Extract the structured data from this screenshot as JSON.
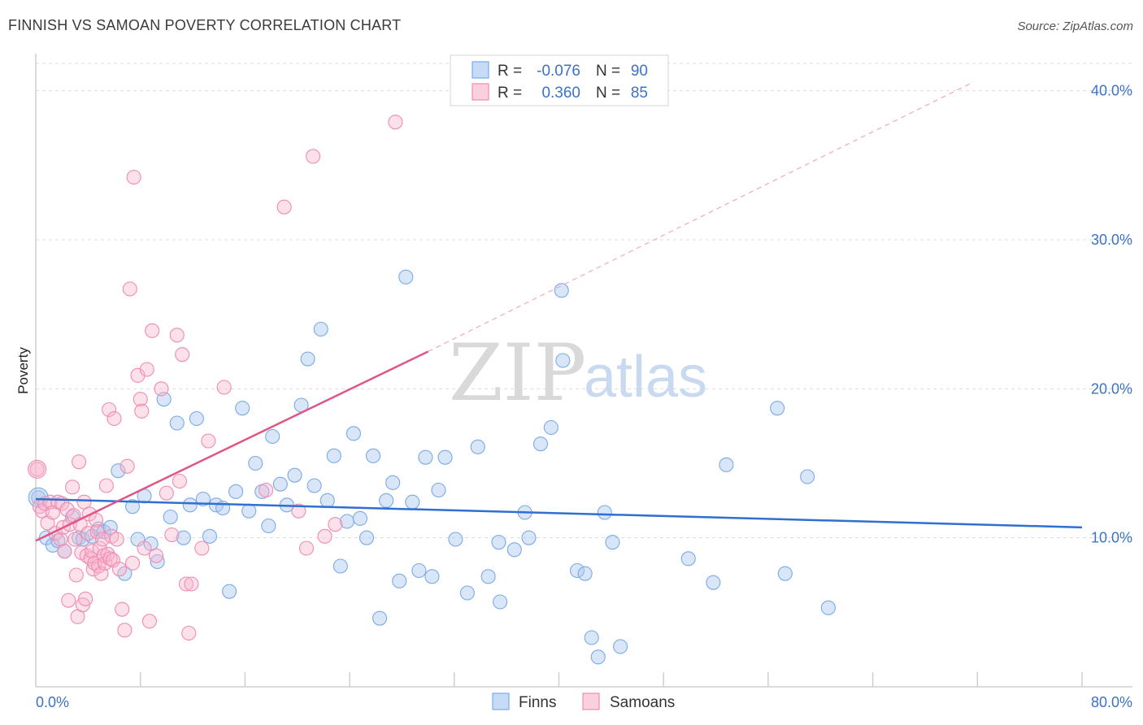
{
  "title": "FINNISH VS SAMOAN POVERTY CORRELATION CHART",
  "source": "Source: ZipAtlas.com",
  "watermark": {
    "zip": "ZIP",
    "atlas": "atlas"
  },
  "legend": {
    "rows": [
      {
        "r_label": "R =",
        "r_value": "-0.076",
        "n_label": "N =",
        "n_value": "90",
        "color": "#7aaae8"
      },
      {
        "r_label": "R =",
        "r_value": "0.360",
        "n_label": "N =",
        "n_value": "85",
        "color": "#f08cb0"
      }
    ]
  },
  "bottom_legend": [
    "Finns",
    "Samoans"
  ],
  "chart_data": {
    "type": "scatter",
    "title": "FINNISH VS SAMOAN POVERTY CORRELATION CHART",
    "xlabel": "",
    "ylabel": "Poverty",
    "xlim": [
      0,
      80
    ],
    "ylim": [
      0,
      42
    ],
    "x_tick_labels": [
      "0.0%",
      "80.0%"
    ],
    "y_ticks": [
      10,
      20,
      30,
      40
    ],
    "y_tick_labels": [
      "10.0%",
      "20.0%",
      "30.0%",
      "40.0%"
    ],
    "grid": true,
    "legend_position": "top-center",
    "series": [
      {
        "name": "Finns",
        "color": "#7aaae8",
        "line_color": "#2f6fd0",
        "trend": {
          "x": [
            0,
            80
          ],
          "y": [
            12.6,
            10.7
          ]
        },
        "points": [
          [
            0.2,
            12.7
          ],
          [
            0.8,
            10.0
          ],
          [
            1.3,
            9.5
          ],
          [
            1.7,
            9.8
          ],
          [
            2.2,
            9.1
          ],
          [
            2.8,
            11.4
          ],
          [
            3.3,
            10.0
          ],
          [
            3.6,
            9.9
          ],
          [
            4.3,
            10.1
          ],
          [
            4.8,
            10.6
          ],
          [
            5.2,
            10.4
          ],
          [
            5.7,
            10.7
          ],
          [
            6.3,
            14.5
          ],
          [
            6.8,
            7.6
          ],
          [
            7.4,
            12.1
          ],
          [
            7.8,
            9.9
          ],
          [
            8.3,
            12.8
          ],
          [
            8.8,
            9.6
          ],
          [
            9.3,
            8.4
          ],
          [
            9.8,
            19.3
          ],
          [
            10.3,
            11.4
          ],
          [
            10.8,
            17.7
          ],
          [
            11.3,
            10.0
          ],
          [
            11.8,
            12.2
          ],
          [
            12.3,
            18.0
          ],
          [
            12.8,
            12.6
          ],
          [
            13.3,
            10.1
          ],
          [
            13.8,
            12.2
          ],
          [
            14.3,
            12.0
          ],
          [
            14.8,
            6.4
          ],
          [
            15.3,
            13.1
          ],
          [
            15.8,
            18.7
          ],
          [
            16.3,
            11.8
          ],
          [
            16.8,
            15.0
          ],
          [
            17.3,
            13.1
          ],
          [
            17.8,
            10.8
          ],
          [
            18.1,
            16.8
          ],
          [
            18.7,
            13.6
          ],
          [
            19.2,
            12.2
          ],
          [
            19.8,
            14.2
          ],
          [
            20.3,
            18.9
          ],
          [
            20.8,
            22.0
          ],
          [
            21.3,
            13.5
          ],
          [
            21.8,
            24.0
          ],
          [
            22.3,
            12.5
          ],
          [
            22.8,
            15.5
          ],
          [
            23.3,
            8.1
          ],
          [
            23.8,
            11.1
          ],
          [
            24.3,
            17.0
          ],
          [
            24.8,
            11.3
          ],
          [
            25.3,
            10.0
          ],
          [
            25.8,
            15.5
          ],
          [
            26.3,
            4.6
          ],
          [
            26.8,
            12.5
          ],
          [
            27.3,
            13.7
          ],
          [
            27.8,
            7.1
          ],
          [
            28.3,
            27.5
          ],
          [
            28.8,
            12.4
          ],
          [
            29.3,
            7.8
          ],
          [
            29.8,
            15.4
          ],
          [
            30.3,
            7.4
          ],
          [
            30.8,
            13.2
          ],
          [
            31.3,
            15.4
          ],
          [
            32.1,
            9.9
          ],
          [
            33.0,
            6.3
          ],
          [
            33.8,
            16.1
          ],
          [
            34.6,
            7.4
          ],
          [
            35.4,
            9.7
          ],
          [
            35.5,
            5.7
          ],
          [
            36.6,
            9.2
          ],
          [
            37.4,
            11.7
          ],
          [
            37.7,
            10.0
          ],
          [
            38.6,
            16.3
          ],
          [
            39.4,
            17.4
          ],
          [
            40.2,
            26.6
          ],
          [
            40.3,
            21.9
          ],
          [
            41.4,
            7.8
          ],
          [
            42.0,
            7.6
          ],
          [
            42.5,
            3.3
          ],
          [
            43.0,
            2.0
          ],
          [
            43.5,
            11.7
          ],
          [
            44.1,
            9.7
          ],
          [
            44.7,
            2.7
          ],
          [
            49.9,
            8.6
          ],
          [
            51.8,
            7.0
          ],
          [
            52.8,
            14.9
          ],
          [
            56.7,
            18.7
          ],
          [
            57.3,
            7.6
          ],
          [
            59.0,
            14.1
          ],
          [
            60.6,
            5.3
          ]
        ]
      },
      {
        "name": "Samoans",
        "color": "#f08cb0",
        "line_color": "#e05588",
        "trend": {
          "x": [
            0,
            30
          ],
          "y": [
            9.8,
            22.5
          ]
        },
        "trend_dashed": {
          "x": [
            30,
            71.5
          ],
          "y": [
            22.5,
            40.5
          ]
        },
        "points": [
          [
            0.1,
            14.6
          ],
          [
            0.3,
            12.1
          ],
          [
            0.5,
            11.8
          ],
          [
            0.7,
            12.3
          ],
          [
            0.9,
            11.0
          ],
          [
            1.1,
            12.4
          ],
          [
            1.3,
            11.7
          ],
          [
            1.5,
            10.3
          ],
          [
            1.7,
            12.4
          ],
          [
            1.9,
            9.9
          ],
          [
            2.0,
            12.3
          ],
          [
            2.1,
            10.7
          ],
          [
            2.2,
            9.1
          ],
          [
            2.4,
            11.9
          ],
          [
            2.5,
            5.8
          ],
          [
            2.6,
            10.9
          ],
          [
            2.8,
            13.4
          ],
          [
            2.9,
            11.5
          ],
          [
            3.0,
            9.9
          ],
          [
            3.1,
            7.5
          ],
          [
            3.2,
            4.7
          ],
          [
            3.3,
            15.1
          ],
          [
            3.4,
            10.9
          ],
          [
            3.5,
            9.0
          ],
          [
            3.6,
            5.5
          ],
          [
            3.7,
            12.4
          ],
          [
            3.8,
            5.9
          ],
          [
            3.9,
            8.8
          ],
          [
            4.0,
            10.3
          ],
          [
            4.1,
            11.6
          ],
          [
            4.2,
            8.6
          ],
          [
            4.3,
            9.1
          ],
          [
            4.4,
            7.9
          ],
          [
            4.5,
            8.3
          ],
          [
            4.6,
            11.2
          ],
          [
            4.7,
            10.4
          ],
          [
            4.8,
            8.1
          ],
          [
            4.9,
            9.3
          ],
          [
            5.0,
            7.6
          ],
          [
            5.1,
            9.9
          ],
          [
            5.2,
            8.8
          ],
          [
            5.3,
            8.3
          ],
          [
            5.4,
            13.5
          ],
          [
            5.5,
            8.9
          ],
          [
            5.6,
            18.6
          ],
          [
            5.7,
            8.6
          ],
          [
            5.8,
            10.1
          ],
          [
            5.9,
            8.5
          ],
          [
            6.0,
            18.0
          ],
          [
            6.2,
            9.9
          ],
          [
            6.4,
            7.9
          ],
          [
            6.6,
            5.2
          ],
          [
            6.8,
            3.8
          ],
          [
            7.0,
            14.8
          ],
          [
            7.2,
            26.7
          ],
          [
            7.4,
            8.3
          ],
          [
            7.5,
            34.2
          ],
          [
            7.8,
            20.9
          ],
          [
            8.0,
            19.3
          ],
          [
            8.1,
            18.5
          ],
          [
            8.3,
            9.3
          ],
          [
            8.5,
            21.3
          ],
          [
            8.7,
            4.4
          ],
          [
            8.9,
            23.9
          ],
          [
            9.2,
            8.8
          ],
          [
            9.6,
            20.0
          ],
          [
            10.0,
            13.0
          ],
          [
            10.4,
            10.2
          ],
          [
            10.8,
            23.6
          ],
          [
            11.0,
            13.8
          ],
          [
            11.2,
            22.3
          ],
          [
            11.5,
            6.9
          ],
          [
            11.7,
            3.6
          ],
          [
            11.9,
            6.9
          ],
          [
            12.7,
            9.3
          ],
          [
            13.2,
            16.5
          ],
          [
            14.4,
            20.1
          ],
          [
            17.6,
            13.2
          ],
          [
            19.0,
            32.2
          ],
          [
            20.1,
            11.8
          ],
          [
            20.7,
            9.3
          ],
          [
            21.2,
            35.6
          ],
          [
            22.1,
            10.1
          ],
          [
            22.9,
            10.9
          ],
          [
            27.5,
            37.9
          ]
        ]
      }
    ]
  }
}
